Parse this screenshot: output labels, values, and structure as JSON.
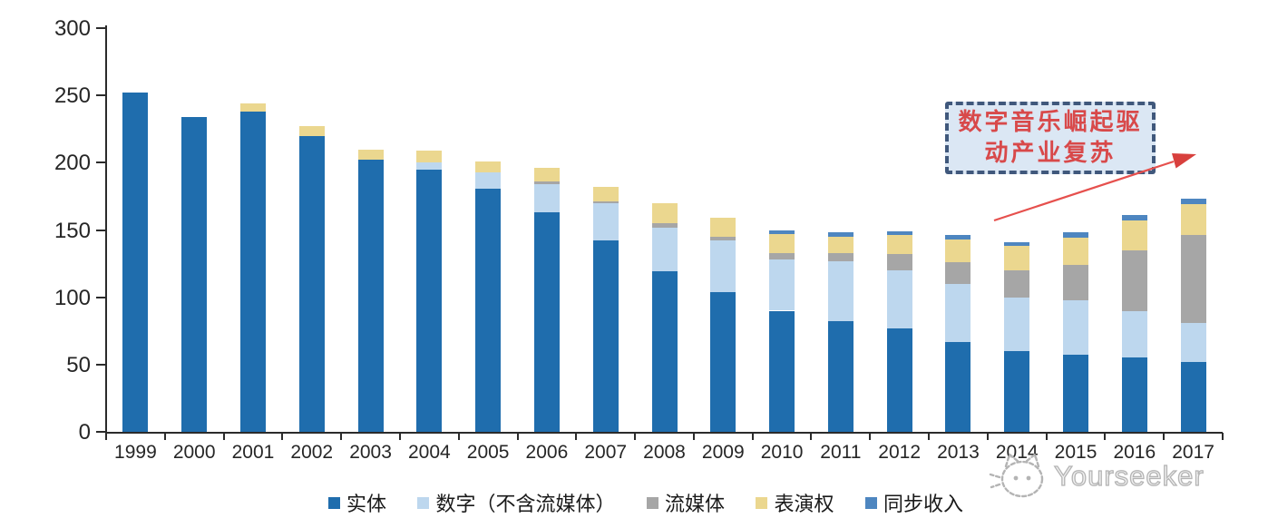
{
  "watermark": {
    "text": "Yourseeker"
  },
  "annotation": {
    "line1": "数字音乐崛起驱",
    "line2": "动产业复苏",
    "box_fill": "#dbe7f4",
    "border_color": "#40587c",
    "text_color": "#d8494a",
    "arrow_color": "#e6504d"
  },
  "colors": {
    "axis": "#2b2b2b",
    "tick_label": "#262626",
    "watermark_gray": "#b4b4b4"
  },
  "chart_data": {
    "type": "bar",
    "stacked": true,
    "grid": false,
    "legend_position": "bottom",
    "title": "",
    "xlabel": "",
    "ylabel": "",
    "ylim": [
      0,
      300
    ],
    "y_ticks": [
      0,
      50,
      100,
      150,
      200,
      250,
      300
    ],
    "categories": [
      "1999",
      "2000",
      "2001",
      "2002",
      "2003",
      "2004",
      "2005",
      "2006",
      "2007",
      "2008",
      "2009",
      "2010",
      "2011",
      "2012",
      "2013",
      "2014",
      "2015",
      "2016",
      "2017"
    ],
    "series": [
      {
        "name": "实体",
        "slug": "physical",
        "color": "#1f6dad",
        "values": [
          252,
          234,
          238,
          220,
          202,
          195,
          181,
          163,
          142,
          119,
          104,
          90,
          82,
          77,
          67,
          60,
          57,
          55,
          52
        ]
      },
      {
        "name": "数字（不含流媒体）",
        "slug": "digital-excl-streaming",
        "color": "#bdd7ee",
        "values": [
          0,
          0,
          0,
          0,
          0,
          5,
          12,
          21,
          28,
          33,
          38,
          38,
          45,
          43,
          43,
          40,
          41,
          35,
          29
        ]
      },
      {
        "name": "流媒体",
        "slug": "streaming",
        "color": "#a6a6a6",
        "values": [
          0,
          0,
          0,
          0,
          0,
          0,
          0,
          2,
          1,
          3,
          3,
          5,
          6,
          12,
          16,
          20,
          26,
          45,
          65
        ]
      },
      {
        "name": "表演权",
        "slug": "performance-rights",
        "color": "#ebd78f",
        "values": [
          0,
          0,
          6,
          7,
          8,
          9,
          8,
          10,
          11,
          15,
          14,
          14,
          12,
          14,
          17,
          18,
          20,
          22,
          23
        ]
      },
      {
        "name": "同步收入",
        "slug": "sync-revenue",
        "color": "#4e86c0",
        "values": [
          0,
          0,
          0,
          0,
          0,
          0,
          0,
          0,
          0,
          0,
          0,
          3,
          3,
          3,
          3,
          3,
          4,
          4,
          4
        ]
      }
    ]
  }
}
